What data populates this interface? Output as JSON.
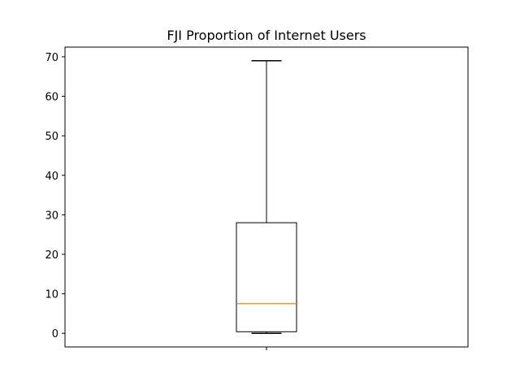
{
  "chart_data": {
    "type": "boxplot",
    "title": "FJI Proportion of Internet Users",
    "xlabel": "",
    "ylabel": "",
    "ylim": [
      -3.45,
      72.45
    ],
    "yticks": [
      0,
      10,
      20,
      30,
      40,
      50,
      60,
      70
    ],
    "ytick_labels": [
      "0",
      "10",
      "20",
      "30",
      "40",
      "50",
      "60",
      "70"
    ],
    "grid": false,
    "series": [
      {
        "whisker_low": 0,
        "q1": 0.4,
        "median": 7.5,
        "q3": 28,
        "whisker_high": 69
      }
    ],
    "colors": {
      "box": "#000000",
      "median": "#ff7f0e",
      "axes": "#000000"
    }
  }
}
